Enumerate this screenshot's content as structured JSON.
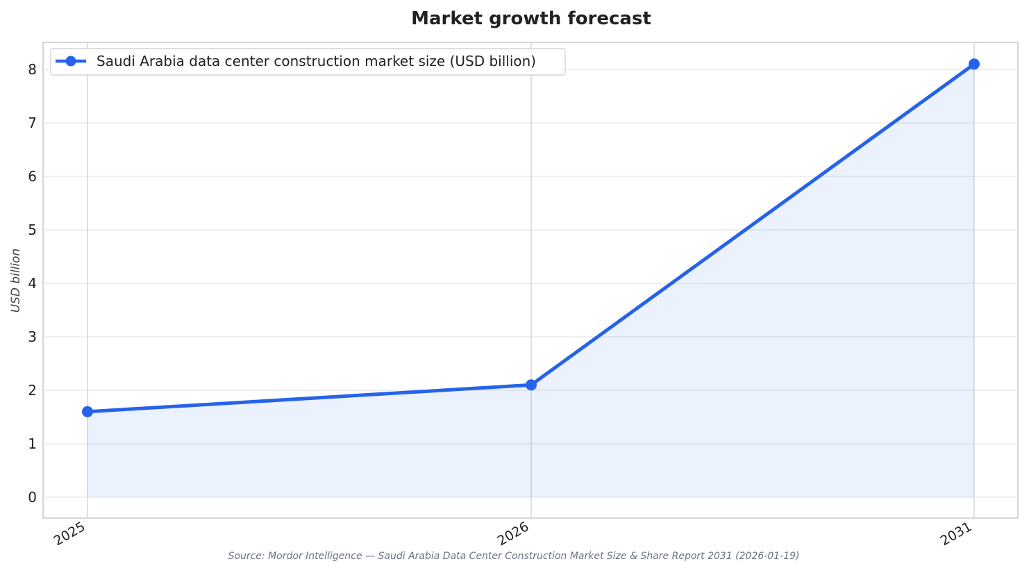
{
  "colors": {
    "series": "#2563eb",
    "area_fill": "#2563eb",
    "grid": "#e5e5e5",
    "frame": "#c8c8c8",
    "text": "#222222",
    "source_text": "#6b7280"
  },
  "chart_data": {
    "type": "area",
    "title": "Market growth forecast",
    "xlabel": "",
    "ylabel": "USD billion",
    "categories": [
      "2025",
      "2026",
      "2031"
    ],
    "series": [
      {
        "name": "Saudi Arabia data center construction market size (USD billion)",
        "values": [
          1.6,
          2.1,
          8.1
        ]
      }
    ],
    "yticks": [
      "0",
      "1",
      "2",
      "3",
      "4",
      "5",
      "6",
      "7",
      "8"
    ],
    "ylim": [
      -0.4,
      8.5
    ],
    "grid": true,
    "legend_position": "top-left",
    "source": "Source: Mordor Intelligence — Saudi Arabia Data Center Construction Market Size & Share Report 2031 (2026-01-19)"
  }
}
